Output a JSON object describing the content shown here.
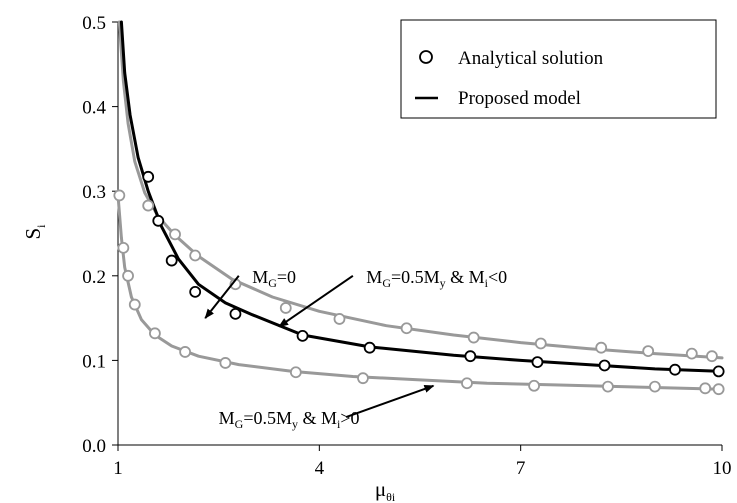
{
  "chart_data": {
    "type": "line",
    "xlabel": {
      "main": "μ",
      "sub": "θi"
    },
    "ylabel": {
      "main": "S",
      "sub": "i"
    },
    "xlim": [
      1,
      10
    ],
    "ylim": [
      0,
      0.5
    ],
    "xticks": [
      "1",
      "4",
      "7",
      "10"
    ],
    "yticks": [
      "0.0",
      "0.1",
      "0.2",
      "0.3",
      "0.4",
      "0.5"
    ],
    "grid": false,
    "legend": {
      "position": "top-right",
      "entries": [
        "Analytical solution",
        "Proposed model"
      ]
    },
    "series": [
      {
        "kind": "analytical",
        "color": "#999999",
        "points": [
          [
            1.45,
            0.283
          ],
          [
            1.85,
            0.249
          ],
          [
            2.15,
            0.224
          ],
          [
            2.75,
            0.19
          ],
          [
            3.5,
            0.162
          ],
          [
            4.3,
            0.149
          ],
          [
            5.3,
            0.138
          ],
          [
            6.3,
            0.127
          ],
          [
            7.3,
            0.12
          ],
          [
            8.2,
            0.115
          ],
          [
            8.9,
            0.111
          ],
          [
            9.55,
            0.108
          ],
          [
            9.85,
            0.105
          ]
        ]
      },
      {
        "kind": "model",
        "color": "#999999",
        "points": [
          [
            1.02,
            0.5
          ],
          [
            1.08,
            0.43
          ],
          [
            1.15,
            0.38
          ],
          [
            1.25,
            0.335
          ],
          [
            1.4,
            0.298
          ],
          [
            1.6,
            0.27
          ],
          [
            1.85,
            0.248
          ],
          [
            2.2,
            0.223
          ],
          [
            2.7,
            0.196
          ],
          [
            3.3,
            0.175
          ],
          [
            4.0,
            0.158
          ],
          [
            5.0,
            0.141
          ],
          [
            6.0,
            0.13
          ],
          [
            7.0,
            0.121
          ],
          [
            8.0,
            0.114
          ],
          [
            9.0,
            0.108
          ],
          [
            10.0,
            0.103
          ]
        ]
      },
      {
        "kind": "analytical",
        "color": "#000000",
        "points": [
          [
            1.45,
            0.317
          ],
          [
            1.6,
            0.265
          ],
          [
            1.8,
            0.218
          ],
          [
            2.15,
            0.181
          ],
          [
            2.75,
            0.155
          ],
          [
            3.75,
            0.129
          ],
          [
            4.75,
            0.115
          ],
          [
            6.25,
            0.105
          ],
          [
            7.25,
            0.098
          ],
          [
            8.25,
            0.094
          ],
          [
            9.3,
            0.089
          ],
          [
            9.95,
            0.087
          ]
        ]
      },
      {
        "kind": "model",
        "color": "#000000",
        "points": [
          [
            1.05,
            0.5
          ],
          [
            1.1,
            0.44
          ],
          [
            1.18,
            0.39
          ],
          [
            1.3,
            0.34
          ],
          [
            1.45,
            0.3
          ],
          [
            1.65,
            0.258
          ],
          [
            1.9,
            0.22
          ],
          [
            2.2,
            0.19
          ],
          [
            2.6,
            0.168
          ],
          [
            3.0,
            0.154
          ],
          [
            3.75,
            0.13
          ],
          [
            4.75,
            0.116
          ],
          [
            6.0,
            0.106
          ],
          [
            7.0,
            0.1
          ],
          [
            8.0,
            0.095
          ],
          [
            9.0,
            0.09
          ],
          [
            10.0,
            0.087
          ]
        ]
      },
      {
        "kind": "analytical",
        "color": "#999999",
        "points": [
          [
            1.02,
            0.295
          ],
          [
            1.08,
            0.233
          ],
          [
            1.15,
            0.2
          ],
          [
            1.25,
            0.166
          ],
          [
            1.55,
            0.132
          ],
          [
            2.0,
            0.11
          ],
          [
            2.6,
            0.097
          ],
          [
            3.65,
            0.086
          ],
          [
            4.65,
            0.079
          ],
          [
            6.2,
            0.073
          ],
          [
            7.2,
            0.07
          ],
          [
            8.3,
            0.069
          ],
          [
            9.0,
            0.069
          ],
          [
            9.75,
            0.067
          ],
          [
            9.95,
            0.066
          ]
        ]
      },
      {
        "kind": "model",
        "color": "#999999",
        "points": [
          [
            1.0,
            0.295
          ],
          [
            1.05,
            0.245
          ],
          [
            1.1,
            0.21
          ],
          [
            1.2,
            0.175
          ],
          [
            1.35,
            0.148
          ],
          [
            1.55,
            0.13
          ],
          [
            1.8,
            0.117
          ],
          [
            2.2,
            0.105
          ],
          [
            2.8,
            0.095
          ],
          [
            3.6,
            0.087
          ],
          [
            4.5,
            0.081
          ],
          [
            5.5,
            0.077
          ],
          [
            6.5,
            0.073
          ],
          [
            7.5,
            0.071
          ],
          [
            8.5,
            0.069
          ],
          [
            10.0,
            0.066
          ]
        ]
      }
    ],
    "annotations": [
      {
        "main": "M",
        "sub": "G",
        "rest": "=0",
        "label_at": [
          3.0,
          0.2
        ],
        "arrow_from": [
          2.8,
          0.2
        ],
        "arrow_to": [
          2.3,
          0.15
        ]
      },
      {
        "main": "M",
        "sub": "G",
        "rest": "=0.5M",
        "sub2": "y",
        "rest2": " & M",
        "sub3": "i",
        "rest3": "<0",
        "label_at": [
          4.7,
          0.2
        ],
        "arrow_from": [
          4.5,
          0.2
        ],
        "arrow_to": [
          3.4,
          0.14
        ]
      },
      {
        "main": "M",
        "sub": "G",
        "rest": "=0.5M",
        "sub2": "y",
        "rest2": " & M",
        "sub3": "i",
        "rest3": ">0",
        "label_at": [
          2.5,
          0.033
        ],
        "arrow_from": [
          4.4,
          0.033
        ],
        "arrow_to": [
          5.7,
          0.07
        ]
      }
    ]
  }
}
